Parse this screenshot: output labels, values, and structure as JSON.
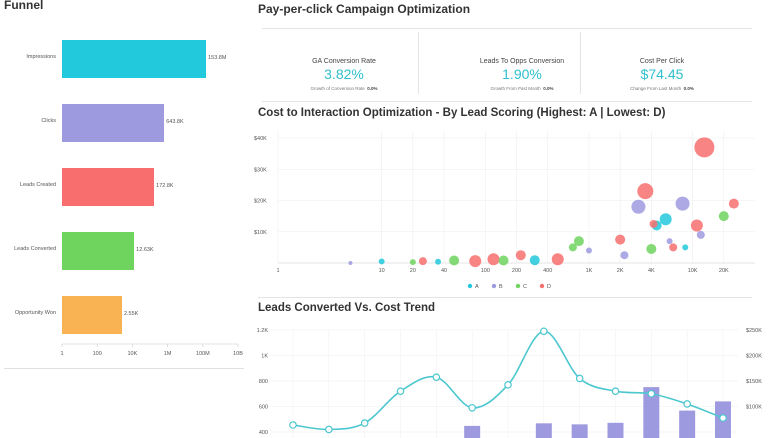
{
  "funnel": {
    "title": "Funnel",
    "stages": [
      {
        "label": "Impressions",
        "value_text": "153.8M",
        "value": 153800000,
        "color": "#22c9dc"
      },
      {
        "label": "Clicks",
        "value_text": "643.8K",
        "value": 643800,
        "color": "#9e9ae0"
      },
      {
        "label": "Leads Created",
        "value_text": "172.8K",
        "value": 172800,
        "color": "#f86e6e"
      },
      {
        "label": "Leads Converted",
        "value_text": "12.63K",
        "value": 12630,
        "color": "#6fd45e"
      },
      {
        "label": "Opportunity Won",
        "value_text": "2.55K",
        "value": 2550,
        "color": "#f9b352"
      }
    ],
    "axis_ticks": [
      "1",
      "100",
      "10K",
      "1M",
      "100M",
      "10B"
    ]
  },
  "ppc": {
    "title": "Pay-per-click Campaign Optimization",
    "kpis": [
      {
        "label": "GA Conversion Rate",
        "value": "3.82%",
        "sub_label": "Growth of Conversion Rate",
        "sub_value": "0.0%"
      },
      {
        "label": "Leads To Opps Conversion",
        "value": "1.90%",
        "sub_label": "Growth From Past Month",
        "sub_value": "0.0%"
      },
      {
        "label": "Cost Per Click",
        "value": "$74.45",
        "sub_label": "Change From Last Month",
        "sub_value": "0.0%"
      }
    ]
  },
  "scatter": {
    "title": "Cost to Interaction Optimization - By Lead Scoring (Highest: A | Lowest: D)",
    "chart_data": {
      "type": "scatter",
      "x_scale": "log",
      "x_ticks": [
        "1",
        "10",
        "20",
        "40",
        "100",
        "200",
        "400",
        "1K",
        "2K",
        "4K",
        "10K",
        "20K"
      ],
      "x_tick_values": [
        1,
        10,
        20,
        40,
        100,
        200,
        400,
        1000,
        2000,
        4000,
        10000,
        20000
      ],
      "y_ticks": [
        "$40K",
        "$30K",
        "$20K",
        "$10K"
      ],
      "y_tick_values": [
        40000,
        30000,
        20000,
        10000
      ],
      "ylim": [
        0,
        40000
      ],
      "legend": [
        "A",
        "B",
        "C",
        "D"
      ],
      "legend_placement": "bottom",
      "colors": {
        "A": "#22c9dc",
        "B": "#9e9ae0",
        "C": "#6fd45e",
        "D": "#f86e6e"
      },
      "points": [
        {
          "g": "B",
          "x": 5,
          "y": 0,
          "s": 2
        },
        {
          "g": "A",
          "x": 10,
          "y": 500,
          "s": 3
        },
        {
          "g": "C",
          "x": 20,
          "y": 300,
          "s": 3
        },
        {
          "g": "D",
          "x": 25,
          "y": 600,
          "s": 4
        },
        {
          "g": "A",
          "x": 35,
          "y": 400,
          "s": 3
        },
        {
          "g": "C",
          "x": 50,
          "y": 800,
          "s": 5
        },
        {
          "g": "D",
          "x": 80,
          "y": 600,
          "s": 6
        },
        {
          "g": "D",
          "x": 120,
          "y": 1200,
          "s": 6
        },
        {
          "g": "C",
          "x": 150,
          "y": 800,
          "s": 5
        },
        {
          "g": "D",
          "x": 220,
          "y": 2500,
          "s": 5
        },
        {
          "g": "A",
          "x": 300,
          "y": 900,
          "s": 5
        },
        {
          "g": "D",
          "x": 500,
          "y": 1200,
          "s": 6
        },
        {
          "g": "C",
          "x": 800,
          "y": 7000,
          "s": 5
        },
        {
          "g": "C",
          "x": 700,
          "y": 5000,
          "s": 4
        },
        {
          "g": "B",
          "x": 1000,
          "y": 4000,
          "s": 3
        },
        {
          "g": "D",
          "x": 2000,
          "y": 7500,
          "s": 5
        },
        {
          "g": "B",
          "x": 2200,
          "y": 2500,
          "s": 4
        },
        {
          "g": "B",
          "x": 3000,
          "y": 18000,
          "s": 7
        },
        {
          "g": "D",
          "x": 3500,
          "y": 23000,
          "s": 8
        },
        {
          "g": "C",
          "x": 4000,
          "y": 4500,
          "s": 5
        },
        {
          "g": "A",
          "x": 4500,
          "y": 12000,
          "s": 5
        },
        {
          "g": "D",
          "x": 4200,
          "y": 12500,
          "s": 4
        },
        {
          "g": "B",
          "x": 6000,
          "y": 7000,
          "s": 3
        },
        {
          "g": "A",
          "x": 5500,
          "y": 14000,
          "s": 6
        },
        {
          "g": "D",
          "x": 6500,
          "y": 5000,
          "s": 4
        },
        {
          "g": "B",
          "x": 8000,
          "y": 19000,
          "s": 7
        },
        {
          "g": "D",
          "x": 11000,
          "y": 12000,
          "s": 6
        },
        {
          "g": "B",
          "x": 12000,
          "y": 9000,
          "s": 4
        },
        {
          "g": "D",
          "x": 13000,
          "y": 37000,
          "s": 10
        },
        {
          "g": "C",
          "x": 20000,
          "y": 15000,
          "s": 5
        },
        {
          "g": "D",
          "x": 25000,
          "y": 19000,
          "s": 5
        },
        {
          "g": "A",
          "x": 8500,
          "y": 5000,
          "s": 3
        }
      ]
    }
  },
  "trend": {
    "title": "Leads Converted Vs. Cost Trend",
    "chart_data": {
      "type": "line",
      "left_axis_ticks": [
        "1.2K",
        "1K",
        "800",
        "600",
        "400"
      ],
      "left_axis_values": [
        1200,
        1000,
        800,
        600,
        400
      ],
      "right_axis_ticks": [
        "$250K",
        "$200K",
        "$150K",
        "$100K"
      ],
      "right_axis_values": [
        250000,
        200000,
        150000,
        100000
      ],
      "line": {
        "name": "",
        "values": [
          455,
          420,
          470,
          720,
          830,
          590,
          770,
          1190,
          820,
          720,
          700,
          620,
          510
        ]
      },
      "bars": {
        "name": "",
        "values": [
          0,
          0,
          0,
          0,
          0,
          62000,
          0,
          67000,
          65000,
          68000,
          138000,
          92000,
          110000
        ]
      }
    }
  }
}
